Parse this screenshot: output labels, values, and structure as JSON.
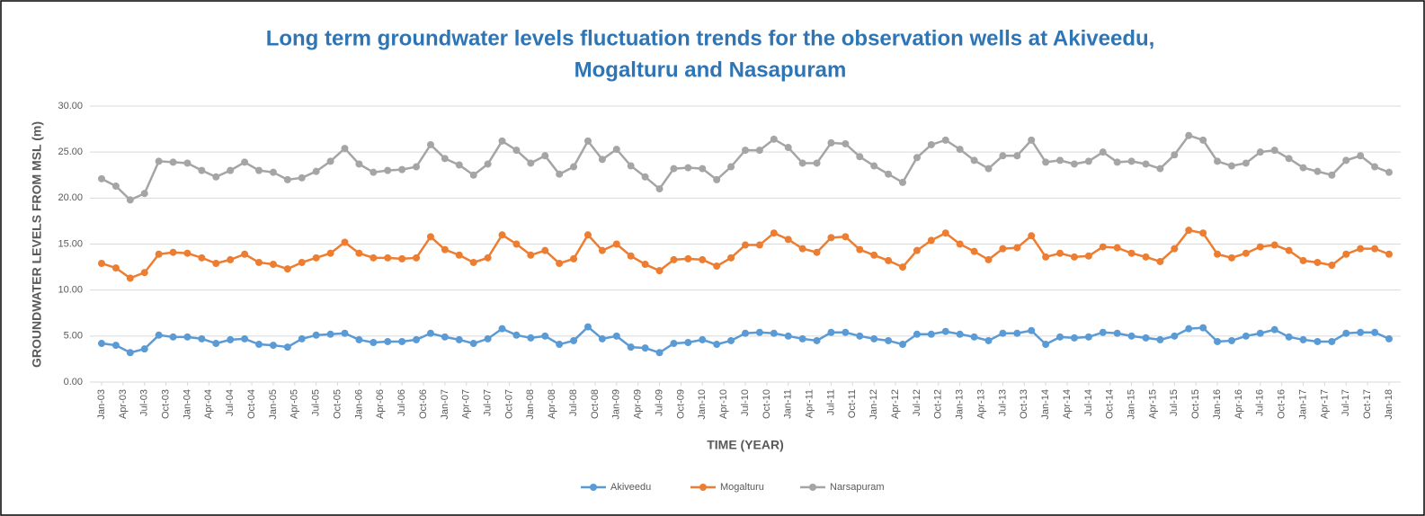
{
  "chart_data": {
    "type": "line",
    "title": "Long term groundwater levels fluctuation trends for the observation wells at Akiveedu,",
    "subtitle": "Mogalturu and Nasapuram",
    "y_label": "GROUNDWATER LEVELS FROM MSL (m)",
    "x_label": "TIME (YEAR)",
    "legend": "bottom",
    "grid": true,
    "x": [
      "2003-01",
      "2003-03",
      "2003-05",
      "2003-07",
      "2003-09",
      "2003-11",
      "2004-01",
      "2004-03",
      "2004-05",
      "2004-07",
      "2004-09",
      "2004-11",
      "2005-01",
      "2005-03",
      "2005-05",
      "2005-07",
      "2005-09",
      "2005-11",
      "2006-01",
      "2006-03",
      "2006-05",
      "2006-07",
      "2006-09",
      "2006-11",
      "2007-01",
      "2007-03",
      "2007-05",
      "2007-07",
      "2007-09",
      "2007-11",
      "2008-01",
      "2008-03",
      "2008-05",
      "2008-07",
      "2008-09",
      "2008-11",
      "2009-01",
      "2009-03",
      "2009-05",
      "2009-07",
      "2009-09",
      "2009-11",
      "2010-01",
      "2010-03",
      "2010-05",
      "2010-07",
      "2010-09",
      "2010-11",
      "2011-01",
      "2011-03",
      "2011-05",
      "2011-07",
      "2011-09",
      "2011-11",
      "2012-01",
      "2012-03",
      "2012-05",
      "2012-07",
      "2012-09",
      "2012-11",
      "2013-01",
      "2013-03",
      "2013-05",
      "2013-07",
      "2013-09",
      "2013-11",
      "2014-01",
      "2014-03",
      "2014-05",
      "2014-07",
      "2014-09",
      "2014-11",
      "2015-01",
      "2015-03",
      "2015-05",
      "2015-07",
      "2015-09",
      "2015-11",
      "2016-01",
      "2016-03",
      "2016-05",
      "2016-07",
      "2016-09",
      "2016-11",
      "2017-01",
      "2017-03",
      "2017-05",
      "2017-07",
      "2017-09",
      "2017-11",
      "2018-01"
    ],
    "xlim": [
      "2003-01",
      "2018-01"
    ],
    "xticks": [
      {
        "value": "2003-01",
        "label": "Jan-03"
      },
      {
        "value": "2003-04",
        "label": "Apr-03"
      },
      {
        "value": "2003-07",
        "label": "Jul-03"
      },
      {
        "value": "2003-10",
        "label": "Oct-03"
      },
      {
        "value": "2004-01",
        "label": "Jan-04"
      },
      {
        "value": "2004-04",
        "label": "Apr-04"
      },
      {
        "value": "2004-07",
        "label": "Jul-04"
      },
      {
        "value": "2004-10",
        "label": "Oct-04"
      },
      {
        "value": "2005-01",
        "label": "Jan-05"
      },
      {
        "value": "2005-04",
        "label": "Apr-05"
      },
      {
        "value": "2005-07",
        "label": "Jul-05"
      },
      {
        "value": "2005-10",
        "label": "Oct-05"
      },
      {
        "value": "2006-01",
        "label": "Jan-06"
      },
      {
        "value": "2006-04",
        "label": "Apr-06"
      },
      {
        "value": "2006-07",
        "label": "Jul-06"
      },
      {
        "value": "2006-10",
        "label": "Oct-06"
      },
      {
        "value": "2007-01",
        "label": "Jan-07"
      },
      {
        "value": "2007-04",
        "label": "Apr-07"
      },
      {
        "value": "2007-07",
        "label": "Jul-07"
      },
      {
        "value": "2007-10",
        "label": "Oct-07"
      },
      {
        "value": "2008-01",
        "label": "Jan-08"
      },
      {
        "value": "2008-04",
        "label": "Apr-08"
      },
      {
        "value": "2008-07",
        "label": "Jul-08"
      },
      {
        "value": "2008-10",
        "label": "Oct-08"
      },
      {
        "value": "2009-01",
        "label": "Jan-09"
      },
      {
        "value": "2009-04",
        "label": "Apr-09"
      },
      {
        "value": "2009-07",
        "label": "Jul-09"
      },
      {
        "value": "2009-10",
        "label": "Oct-09"
      },
      {
        "value": "2010-01",
        "label": "Jan-10"
      },
      {
        "value": "2010-04",
        "label": "Apr-10"
      },
      {
        "value": "2010-07",
        "label": "Jul-10"
      },
      {
        "value": "2010-10",
        "label": "Oct-10"
      },
      {
        "value": "2011-01",
        "label": "Jan-11"
      },
      {
        "value": "2011-04",
        "label": "Apr-11"
      },
      {
        "value": "2011-07",
        "label": "Jul-11"
      },
      {
        "value": "2011-10",
        "label": "Oct-11"
      },
      {
        "value": "2012-01",
        "label": "Jan-12"
      },
      {
        "value": "2012-04",
        "label": "Apr-12"
      },
      {
        "value": "2012-07",
        "label": "Jul-12"
      },
      {
        "value": "2012-10",
        "label": "Oct-12"
      },
      {
        "value": "2013-01",
        "label": "Jan-13"
      },
      {
        "value": "2013-04",
        "label": "Apr-13"
      },
      {
        "value": "2013-07",
        "label": "Jul-13"
      },
      {
        "value": "2013-10",
        "label": "Oct-13"
      },
      {
        "value": "2014-01",
        "label": "Jan-14"
      },
      {
        "value": "2014-04",
        "label": "Apr-14"
      },
      {
        "value": "2014-07",
        "label": "Jul-14"
      },
      {
        "value": "2014-10",
        "label": "Oct-14"
      },
      {
        "value": "2015-01",
        "label": "Jan-15"
      },
      {
        "value": "2015-04",
        "label": "Apr-15"
      },
      {
        "value": "2015-07",
        "label": "Jul-15"
      },
      {
        "value": "2015-10",
        "label": "Oct-15"
      },
      {
        "value": "2016-01",
        "label": "Jan-16"
      },
      {
        "value": "2016-04",
        "label": "Apr-16"
      },
      {
        "value": "2016-07",
        "label": "Jul-16"
      },
      {
        "value": "2016-10",
        "label": "Oct-16"
      },
      {
        "value": "2017-01",
        "label": "Jan-17"
      },
      {
        "value": "2017-04",
        "label": "Apr-17"
      },
      {
        "value": "2017-07",
        "label": "Jul-17"
      },
      {
        "value": "2017-10",
        "label": "Oct-17"
      },
      {
        "value": "2018-01",
        "label": "Jan-18"
      }
    ],
    "ylim": [
      0,
      30
    ],
    "yticks": [
      {
        "value": 0,
        "label": "0.00"
      },
      {
        "value": 5,
        "label": "5.00"
      },
      {
        "value": 10,
        "label": "10.00"
      },
      {
        "value": 15,
        "label": "15.00"
      },
      {
        "value": 20,
        "label": "20.00"
      },
      {
        "value": 25,
        "label": "25.00"
      },
      {
        "value": 30,
        "label": "30.00"
      }
    ],
    "series": [
      {
        "name": "Akiveedu",
        "color": "#5b9bd5",
        "values": [
          4.2,
          4.0,
          3.2,
          3.6,
          5.1,
          4.9,
          4.9,
          4.7,
          4.2,
          4.6,
          4.7,
          4.1,
          4.0,
          3.8,
          4.7,
          5.1,
          5.2,
          5.3,
          4.6,
          4.3,
          4.4,
          4.4,
          4.6,
          5.3,
          4.9,
          4.6,
          4.2,
          4.7,
          5.8,
          5.1,
          4.8,
          5.0,
          4.1,
          4.5,
          6.0,
          4.7,
          5.0,
          3.8,
          3.7,
          3.2,
          4.2,
          4.3,
          4.6,
          4.1,
          4.5,
          5.3,
          5.4,
          5.3,
          5.0,
          4.7,
          4.5,
          5.4,
          5.4,
          5.0,
          4.7,
          4.5,
          4.1,
          5.2,
          5.2,
          5.5,
          5.2,
          4.9,
          4.5,
          5.3,
          5.3,
          5.6,
          4.1,
          4.9,
          4.8,
          4.9,
          5.4,
          5.3,
          5.0,
          4.8,
          4.6,
          5.0,
          5.8,
          5.9,
          4.4,
          4.5,
          5.0,
          5.3,
          5.7,
          4.9,
          4.6,
          4.4,
          4.4,
          5.3,
          5.4,
          5.4,
          4.7
        ]
      },
      {
        "name": "Mogalturu",
        "color": "#ed7d31",
        "values": [
          12.9,
          12.4,
          11.3,
          11.9,
          13.9,
          14.1,
          14.0,
          13.5,
          12.9,
          13.3,
          13.9,
          13.0,
          12.8,
          12.3,
          13.0,
          13.5,
          14.0,
          15.2,
          14.0,
          13.5,
          13.5,
          13.4,
          13.5,
          15.8,
          14.4,
          13.8,
          13.0,
          13.5,
          16.0,
          15.0,
          13.8,
          14.3,
          12.9,
          13.4,
          16.0,
          14.3,
          15.0,
          13.7,
          12.8,
          12.1,
          13.3,
          13.4,
          13.3,
          12.6,
          13.5,
          14.9,
          14.9,
          16.2,
          15.5,
          14.5,
          14.1,
          15.7,
          15.8,
          14.4,
          13.8,
          13.2,
          12.5,
          14.3,
          15.4,
          16.2,
          15.0,
          14.2,
          13.3,
          14.5,
          14.6,
          15.9,
          13.6,
          14.0,
          13.6,
          13.7,
          14.7,
          14.6,
          14.0,
          13.6,
          13.1,
          14.5,
          16.5,
          16.2,
          13.9,
          13.5,
          14.0,
          14.7,
          14.9,
          14.3,
          13.2,
          13.0,
          12.7,
          13.9,
          14.5,
          14.5,
          13.9
        ]
      },
      {
        "name": "Narsapuram",
        "color": "#a5a5a5",
        "values": [
          22.1,
          21.3,
          19.8,
          20.5,
          24.0,
          23.9,
          23.8,
          23.0,
          22.3,
          23.0,
          23.9,
          23.0,
          22.8,
          22.0,
          22.2,
          22.9,
          24.0,
          25.4,
          23.7,
          22.8,
          23.0,
          23.1,
          23.4,
          25.8,
          24.3,
          23.6,
          22.5,
          23.7,
          26.2,
          25.2,
          23.8,
          24.6,
          22.6,
          23.4,
          26.2,
          24.2,
          25.3,
          23.5,
          22.3,
          21.0,
          23.2,
          23.3,
          23.2,
          22.0,
          23.4,
          25.2,
          25.2,
          26.4,
          25.5,
          23.8,
          23.8,
          26.0,
          25.9,
          24.5,
          23.5,
          22.6,
          21.7,
          24.4,
          25.8,
          26.3,
          25.3,
          24.1,
          23.2,
          24.6,
          24.6,
          26.3,
          23.9,
          24.1,
          23.7,
          24.0,
          25.0,
          23.9,
          24.0,
          23.7,
          23.2,
          24.7,
          26.8,
          26.3,
          24.0,
          23.5,
          23.8,
          25.0,
          25.2,
          24.3,
          23.3,
          22.9,
          22.5,
          24.1,
          24.6,
          23.4,
          22.8
        ]
      }
    ]
  }
}
